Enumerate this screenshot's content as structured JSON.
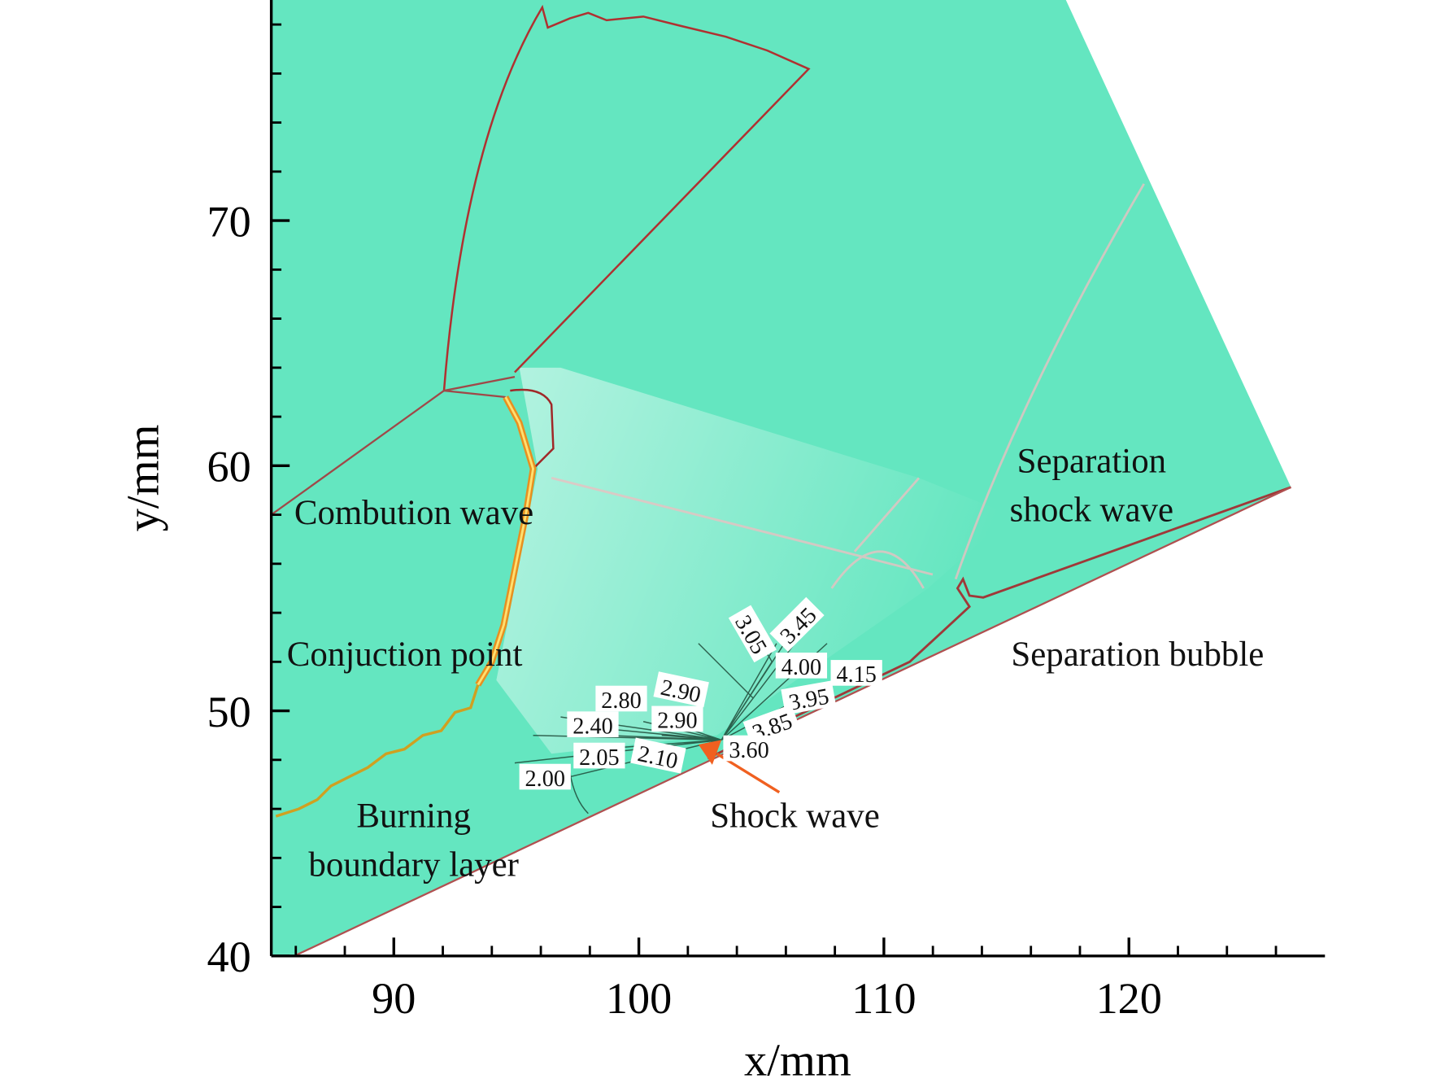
{
  "chart_data": {
    "type": "contour",
    "xlabel": "x/mm",
    "ylabel": "y/mm",
    "xlim": [
      85,
      128
    ],
    "ylim": [
      40,
      79
    ],
    "xticks": [
      90,
      100,
      110,
      120
    ],
    "yticks": [
      40,
      50,
      60,
      70
    ],
    "xminorticks": [
      86,
      88,
      92,
      94,
      96,
      98,
      102,
      104,
      106,
      108,
      112,
      114,
      116,
      118,
      122,
      124,
      126
    ],
    "yminorticks": [
      42,
      44,
      46,
      48,
      52,
      54,
      56,
      58,
      62,
      64,
      66,
      68,
      72,
      74,
      76,
      78
    ],
    "color": "#64e6c0",
    "contour_labels": {
      "values": [
        2.0,
        2.05,
        2.1,
        2.4,
        2.8,
        2.9,
        2.9,
        3.05,
        3.45,
        4.0,
        4.15,
        3.95,
        3.85,
        3.6
      ],
      "value_labels": [
        "2.00",
        "2.05",
        "2.10",
        "2.40",
        "2.80",
        "2.90",
        "2.90",
        "3.05",
        "3.45",
        "4.00",
        "4.15",
        "3.95",
        "3.85",
        "3.60"
      ]
    },
    "annotations": [
      "Combution wave",
      "Conjuction point",
      "Burning",
      "boundary layer",
      "Separation",
      "shock wave",
      "Separation bubble",
      "Shock wave"
    ]
  }
}
